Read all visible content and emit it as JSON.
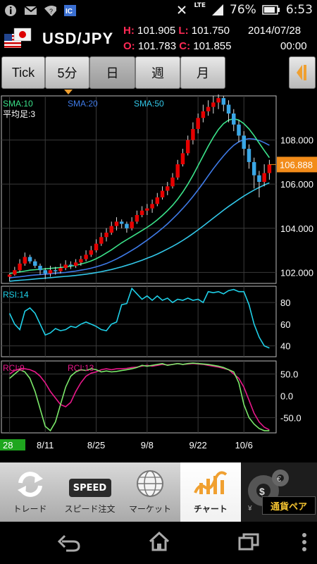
{
  "status_bar": {
    "left_icons": [
      "info-icon",
      "mail-icon",
      "wifi-question-icon",
      "ic-icon"
    ],
    "network": "LTE",
    "battery": "76%",
    "time": "6:53"
  },
  "header": {
    "pair": "USD/JPY",
    "high_label": "H:",
    "high": "101.905",
    "low_label": "L:",
    "low": "101.750",
    "date": "2014/07/28",
    "open_label": "O:",
    "open": "101.783",
    "close_label": "C:",
    "close": "101.855",
    "time": "00:00"
  },
  "toolbar": {
    "tabs": [
      "Tick",
      "5分",
      "日",
      "週",
      "月"
    ],
    "selected": "日"
  },
  "chart_data": {
    "type": "candlestick",
    "price_panel": {
      "indicators": [
        {
          "name": "SMA:10",
          "color": "#3be38a"
        },
        {
          "name": "SMA:20",
          "color": "#3f7be8"
        },
        {
          "name": "SMA:50",
          "color": "#32c7e8"
        }
      ],
      "subtitle": "平均足:3",
      "ylim": [
        101.5,
        110.0
      ],
      "yticks": [
        "108.000",
        "106.000",
        "104.000",
        "102.000"
      ],
      "current_price": "106.888",
      "candles": [
        [
          101.8,
          101.9,
          101.6,
          101.95
        ],
        [
          101.9,
          102.1,
          101.85,
          102.25
        ],
        [
          102.1,
          102.4,
          102.0,
          102.6
        ],
        [
          102.4,
          102.7,
          102.3,
          102.9
        ],
        [
          102.7,
          102.5,
          102.4,
          102.8
        ],
        [
          102.5,
          102.3,
          102.2,
          102.6
        ],
        [
          102.3,
          102.1,
          101.9,
          102.4
        ],
        [
          102.1,
          101.95,
          101.7,
          102.2
        ],
        [
          101.95,
          102.1,
          101.8,
          102.3
        ],
        [
          102.1,
          102.05,
          101.9,
          102.25
        ],
        [
          102.05,
          102.2,
          101.95,
          102.4
        ],
        [
          102.2,
          102.35,
          102.1,
          102.55
        ],
        [
          102.35,
          102.3,
          102.15,
          102.5
        ],
        [
          102.3,
          102.45,
          102.2,
          102.6
        ],
        [
          102.45,
          102.6,
          102.3,
          102.75
        ],
        [
          102.6,
          102.8,
          102.5,
          103.0
        ],
        [
          102.8,
          103.0,
          102.7,
          103.2
        ],
        [
          103.0,
          103.3,
          102.9,
          103.5
        ],
        [
          103.3,
          103.6,
          103.2,
          103.8
        ],
        [
          103.6,
          103.8,
          103.4,
          104.0
        ],
        [
          103.8,
          104.1,
          103.7,
          104.3
        ],
        [
          104.1,
          104.3,
          103.9,
          104.5
        ],
        [
          104.3,
          104.2,
          104.0,
          104.4
        ],
        [
          104.2,
          104.0,
          103.8,
          104.3
        ],
        [
          104.0,
          104.3,
          103.9,
          104.5
        ],
        [
          104.3,
          104.6,
          104.2,
          104.8
        ],
        [
          104.6,
          104.8,
          104.5,
          105.0
        ],
        [
          104.8,
          104.9,
          104.6,
          105.1
        ],
        [
          104.9,
          105.1,
          104.7,
          105.3
        ],
        [
          105.1,
          105.4,
          105.0,
          105.6
        ],
        [
          105.4,
          105.7,
          105.3,
          105.9
        ],
        [
          105.7,
          105.9,
          105.5,
          106.1
        ],
        [
          105.9,
          106.3,
          105.8,
          106.5
        ],
        [
          106.3,
          106.9,
          106.2,
          107.1
        ],
        [
          106.9,
          107.4,
          106.8,
          107.6
        ],
        [
          107.4,
          108.0,
          107.3,
          108.2
        ],
        [
          108.0,
          108.5,
          107.8,
          108.8
        ],
        [
          108.5,
          109.0,
          108.3,
          109.2
        ],
        [
          109.0,
          109.3,
          108.8,
          109.6
        ],
        [
          109.3,
          109.5,
          109.1,
          109.8
        ],
        [
          109.5,
          109.7,
          109.2,
          110.0
        ],
        [
          109.7,
          109.9,
          109.4,
          110.2
        ],
        [
          109.9,
          109.6,
          109.3,
          110.0
        ],
        [
          109.6,
          109.2,
          108.8,
          109.8
        ],
        [
          109.2,
          108.7,
          108.4,
          109.4
        ],
        [
          108.7,
          108.2,
          107.9,
          108.9
        ],
        [
          108.2,
          107.6,
          107.3,
          108.4
        ],
        [
          107.6,
          107.0,
          106.7,
          107.8
        ],
        [
          107.0,
          106.4,
          105.8,
          107.2
        ],
        [
          106.4,
          106.1,
          105.4,
          106.6
        ],
        [
          106.1,
          106.5,
          105.9,
          106.9
        ],
        [
          106.5,
          106.888,
          106.2,
          107.1
        ]
      ],
      "sma10": [
        101.95,
        101.98,
        102.02,
        102.06,
        102.1,
        102.12,
        102.14,
        102.16,
        102.18,
        102.2,
        102.22,
        102.25,
        102.28,
        102.32,
        102.38,
        102.44,
        102.52,
        102.62,
        102.74,
        102.88,
        103.02,
        103.18,
        103.34,
        103.48,
        103.62,
        103.76,
        103.9,
        104.04,
        104.2,
        104.38,
        104.58,
        104.8,
        105.04,
        105.32,
        105.64,
        106.0,
        106.4,
        106.84,
        107.28,
        107.72,
        108.12,
        108.48,
        108.74,
        108.9,
        108.96,
        108.9,
        108.74,
        108.5,
        108.2,
        107.86,
        107.52,
        107.2
      ],
      "sma20": [
        101.75,
        101.78,
        101.8,
        101.83,
        101.86,
        101.88,
        101.9,
        101.92,
        101.94,
        101.96,
        101.98,
        102.0,
        102.03,
        102.06,
        102.1,
        102.14,
        102.19,
        102.25,
        102.32,
        102.4,
        102.5,
        102.61,
        102.73,
        102.86,
        103.0,
        103.14,
        103.3,
        103.46,
        103.63,
        103.81,
        104.0,
        104.2,
        104.42,
        104.65,
        104.9,
        105.16,
        105.44,
        105.74,
        106.05,
        106.38,
        106.7,
        107.0,
        107.28,
        107.54,
        107.76,
        107.92,
        108.02,
        108.06,
        108.04,
        107.98,
        107.88,
        107.76
      ],
      "sma50": [
        101.6,
        101.62,
        101.64,
        101.66,
        101.68,
        101.7,
        101.72,
        101.74,
        101.76,
        101.78,
        101.8,
        101.82,
        101.84,
        101.86,
        101.89,
        101.92,
        101.95,
        101.99,
        102.03,
        102.08,
        102.13,
        102.19,
        102.25,
        102.32,
        102.39,
        102.47,
        102.55,
        102.64,
        102.73,
        102.83,
        102.94,
        103.06,
        103.18,
        103.31,
        103.45,
        103.6,
        103.76,
        103.93,
        104.1,
        104.28,
        104.46,
        104.64,
        104.82,
        104.99,
        105.15,
        105.31,
        105.46,
        105.6,
        105.73,
        105.85,
        105.96,
        106.06
      ]
    },
    "rsi_panel": {
      "label": "RSI:14",
      "ylim": [
        30,
        95
      ],
      "yticks": [
        "80",
        "60",
        "40"
      ],
      "values": [
        70,
        60,
        55,
        72,
        75,
        70,
        60,
        50,
        52,
        56,
        54,
        55,
        58,
        57,
        60,
        62,
        60,
        58,
        55,
        54,
        60,
        62,
        78,
        79,
        93,
        88,
        83,
        86,
        82,
        86,
        82,
        84,
        80,
        83,
        82,
        84,
        82,
        83,
        80,
        90,
        89,
        90,
        88,
        91,
        92,
        90,
        90,
        78,
        60,
        48,
        40,
        38
      ]
    },
    "rci_panel": {
      "label_a": "RCI:9",
      "label_b": "RCI:13",
      "ylim": [
        -85,
        80
      ],
      "yticks": [
        "50.0",
        "0.0",
        "-50.0"
      ],
      "rci9": [
        40,
        50,
        60,
        55,
        40,
        10,
        -30,
        -70,
        -80,
        -60,
        -20,
        20,
        45,
        55,
        60,
        58,
        62,
        60,
        55,
        57,
        55,
        56,
        58,
        60,
        62,
        65,
        70,
        68,
        70,
        72,
        74,
        70,
        72,
        74,
        72,
        74,
        75,
        74,
        73,
        72,
        70,
        68,
        65,
        60,
        55,
        30,
        -20,
        -50,
        -65,
        -75,
        -80,
        -80
      ],
      "rci13": [
        50,
        58,
        62,
        62,
        60,
        55,
        45,
        30,
        10,
        -5,
        -20,
        -25,
        -15,
        10,
        30,
        45,
        52,
        55,
        60,
        62,
        60,
        62,
        62,
        63,
        65,
        66,
        68,
        70,
        68,
        70,
        72,
        71,
        72,
        74,
        72,
        73,
        74,
        73,
        72,
        70,
        68,
        66,
        63,
        60,
        50,
        40,
        20,
        -10,
        -40,
        -60,
        -72,
        -78
      ]
    },
    "x_axis": {
      "labels": [
        "28",
        "8/11",
        "8/25",
        "9/8",
        "9/22",
        "10/6"
      ]
    }
  },
  "tabbar": {
    "tabs": [
      {
        "label": "トレード",
        "icon": "refresh-arrows-icon"
      },
      {
        "label": "スピード注文",
        "icon": "speed-icon",
        "badge": "SPEED"
      },
      {
        "label": "マーケット",
        "icon": "globe-icon"
      },
      {
        "label": "チャート",
        "icon": "chart-icon"
      },
      {
        "label": "通貨ペア",
        "icon": "currency-gear-icon"
      }
    ],
    "active": "チャート"
  },
  "colors": {
    "up_candle": "#e60000",
    "down_candle": "#3aa7e6",
    "price_badge": "#f28c1a"
  }
}
